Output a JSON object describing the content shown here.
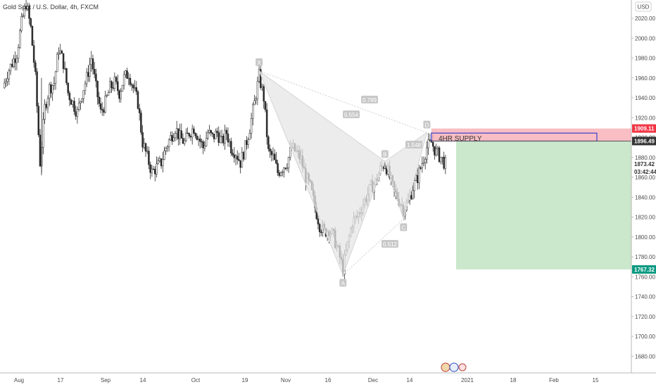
{
  "header": {
    "symbol": "Gold Spot / U.S. Dollar, 4h, FXCM"
  },
  "currency_button": "USD",
  "chart_data": {
    "type": "candlestick",
    "title": "Gold Spot / U.S. Dollar, 4h, FXCM",
    "ylim": [
      1665,
      2038
    ],
    "y_ticks": [
      "2020.00",
      "2000.00",
      "1980.00",
      "1960.00",
      "1940.00",
      "1920.00",
      "1900.00",
      "1880.00",
      "1860.00",
      "1840.00",
      "1820.00",
      "1800.00",
      "1780.00",
      "1760.00",
      "1740.00",
      "1720.00",
      "1700.00",
      "1680.00"
    ],
    "x_ticks": [
      "Aug",
      "17",
      "Sep",
      "14",
      "Oct",
      "19",
      "Nov",
      "16",
      "Dec",
      "14",
      "2021",
      "18",
      "Feb",
      "15"
    ],
    "price_path": [
      [
        0,
        1950
      ],
      [
        1,
        1965
      ],
      [
        2,
        1975
      ],
      [
        3,
        1985
      ],
      [
        4,
        2015
      ],
      [
        5,
        2035
      ],
      [
        6,
        2010
      ],
      [
        7,
        1960
      ],
      [
        8,
        1875
      ],
      [
        9,
        1930
      ],
      [
        10,
        1950
      ],
      [
        11,
        1955
      ],
      [
        12,
        1990
      ],
      [
        13,
        1975
      ],
      [
        14,
        1945
      ],
      [
        15,
        1935
      ],
      [
        16,
        1925
      ],
      [
        17,
        1945
      ],
      [
        18,
        1960
      ],
      [
        19,
        1980
      ],
      [
        20,
        1950
      ],
      [
        21,
        1925
      ],
      [
        22,
        1935
      ],
      [
        23,
        1950
      ],
      [
        24,
        1955
      ],
      [
        25,
        1945
      ],
      [
        26,
        1960
      ],
      [
        27,
        1965
      ],
      [
        28,
        1950
      ],
      [
        29,
        1935
      ],
      [
        30,
        1895
      ],
      [
        31,
        1880
      ],
      [
        32,
        1865
      ],
      [
        33,
        1870
      ],
      [
        34,
        1875
      ],
      [
        35,
        1890
      ],
      [
        36,
        1900
      ],
      [
        37,
        1910
      ],
      [
        38,
        1900
      ],
      [
        39,
        1895
      ],
      [
        40,
        1905
      ],
      [
        41,
        1910
      ],
      [
        42,
        1900
      ],
      [
        43,
        1890
      ],
      [
        44,
        1905
      ],
      [
        45,
        1900
      ],
      [
        46,
        1905
      ],
      [
        47,
        1895
      ],
      [
        48,
        1905
      ],
      [
        49,
        1890
      ],
      [
        50,
        1885
      ],
      [
        51,
        1875
      ],
      [
        52,
        1890
      ],
      [
        53,
        1910
      ],
      [
        54,
        1935
      ],
      [
        55,
        1962
      ],
      [
        56,
        1940
      ],
      [
        57,
        1885
      ],
      [
        58,
        1880
      ],
      [
        59,
        1865
      ],
      [
        60,
        1870
      ],
      [
        61,
        1875
      ],
      [
        62,
        1890
      ],
      [
        63,
        1885
      ],
      [
        64,
        1878
      ],
      [
        65,
        1860
      ],
      [
        66,
        1850
      ],
      [
        67,
        1830
      ],
      [
        68,
        1812
      ],
      [
        69,
        1805
      ],
      [
        70,
        1808
      ],
      [
        71,
        1800
      ],
      [
        72,
        1785
      ],
      [
        73,
        1768
      ],
      [
        74,
        1792
      ],
      [
        75,
        1815
      ],
      [
        76,
        1820
      ],
      [
        77,
        1830
      ],
      [
        78,
        1840
      ],
      [
        79,
        1850
      ],
      [
        80,
        1855
      ],
      [
        81,
        1868
      ],
      [
        82,
        1875
      ],
      [
        83,
        1860
      ],
      [
        84,
        1845
      ],
      [
        85,
        1838
      ],
      [
        86,
        1828
      ],
      [
        87,
        1835
      ],
      [
        88,
        1850
      ],
      [
        89,
        1860
      ],
      [
        90,
        1875
      ],
      [
        91,
        1890
      ],
      [
        92,
        1895
      ],
      [
        93,
        1885
      ],
      [
        94,
        1880
      ],
      [
        95,
        1873
      ]
    ],
    "harmonic_pattern": {
      "points": [
        {
          "label": "X",
          "date_index": 55,
          "price": 1967
        },
        {
          "label": "A",
          "date_index": 73,
          "price": 1762
        },
        {
          "label": "B",
          "date_index": 82,
          "price": 1876
        },
        {
          "label": "C",
          "date_index": 86,
          "price": 1818
        },
        {
          "label": "D",
          "date_index": 91,
          "price": 1905
        }
      ],
      "ratios": [
        "0.789",
        "0.554",
        "1.548",
        "0.512"
      ]
    },
    "zones": {
      "supply_label": "4HR SUPPLY",
      "stop_price": 1909.11,
      "entry_price": 1896.49,
      "target_price": 1767.32
    },
    "price_tags": [
      {
        "value": "1909.11",
        "bg": "#f23645",
        "fg": "#ffffff"
      },
      {
        "value": "1896.49",
        "bg": "#333333",
        "fg": "#ffffff"
      },
      {
        "value": "1873.42",
        "bg": "none",
        "fg": "#333333"
      },
      {
        "value": "03:42:44",
        "bg": "none",
        "fg": "#333333"
      },
      {
        "value": "1767.32",
        "bg": "#089981",
        "fg": "#ffffff"
      }
    ],
    "colors": {
      "candles": "#2b2b2b",
      "pattern_fill": "#e5e5e5",
      "pattern_label_bg": "#c8c8c8",
      "stop_zone": "#f7b3b9",
      "target_zone": "#c8e6c9",
      "supply_box": "#3a3fd0"
    },
    "grid": false,
    "legend": "none"
  }
}
